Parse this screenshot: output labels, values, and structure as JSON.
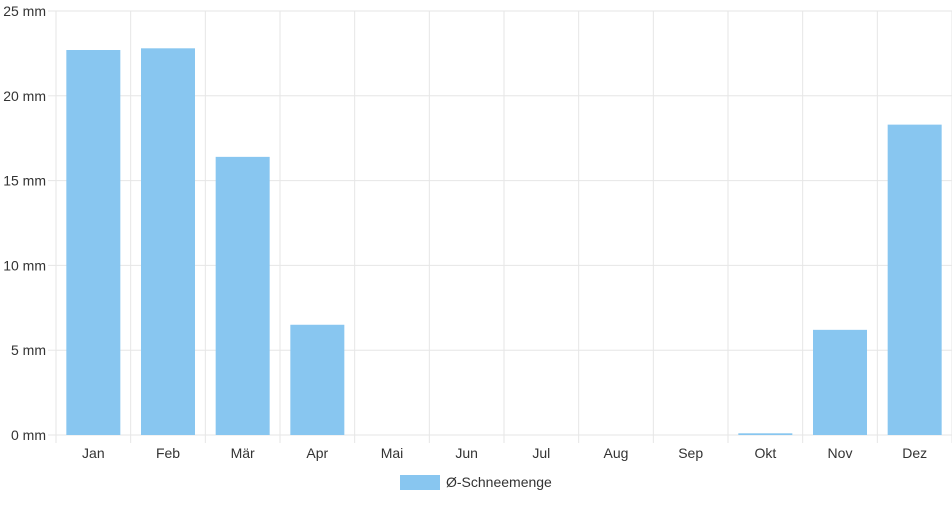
{
  "chart_data": {
    "type": "bar",
    "categories": [
      "Jan",
      "Feb",
      "Mär",
      "Apr",
      "Mai",
      "Jun",
      "Jul",
      "Aug",
      "Sep",
      "Okt",
      "Nov",
      "Dez"
    ],
    "series": [
      {
        "name": "Ø-Schneemenge",
        "values": [
          22.7,
          22.8,
          16.4,
          6.5,
          0,
          0,
          0,
          0,
          0,
          0.1,
          6.2,
          18.3
        ],
        "color": "#88c6f0"
      }
    ],
    "y_unit": "mm",
    "y_ticks": [
      "0 mm",
      "5 mm",
      "10 mm",
      "15 mm",
      "20 mm",
      "25 mm"
    ],
    "ylim": [
      0,
      25
    ],
    "grid": true,
    "legend_position": "bottom-center",
    "grid_color": "#e6e6e6"
  }
}
